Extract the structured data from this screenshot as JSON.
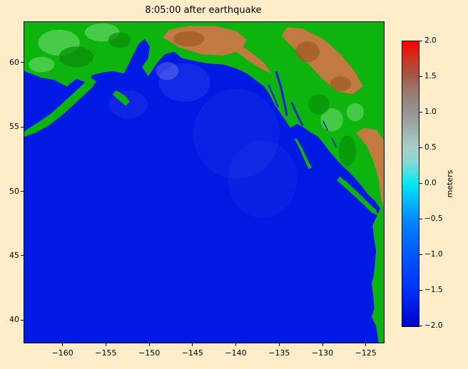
{
  "chart_data": {
    "type": "heatmap",
    "title": "8:05:00 after earthquake",
    "xlabel": "",
    "ylabel": "",
    "description": "Tsunami simulation frame over the Gulf of Alaska and northeast Pacific: uniform deep-blue ocean surface, green-to-copper shaded land (Alaska, Yukon, British Columbia, US west coast), colorbar of sea-surface elevation in meters from -2 to 2.",
    "xlim": [
      -164.5,
      -123.0
    ],
    "ylim": [
      38.3,
      63.2
    ],
    "x_ticks": [
      -160,
      -155,
      -150,
      -145,
      -140,
      -135,
      -130,
      -125
    ],
    "x_tick_labels": [
      "−160",
      "−155",
      "−150",
      "−145",
      "−140",
      "−135",
      "−130",
      "−125"
    ],
    "y_ticks": [
      40,
      45,
      50,
      55,
      60
    ],
    "y_tick_labels": [
      "40",
      "45",
      "50",
      "55",
      "60"
    ],
    "grid": false,
    "colorbar": {
      "label": "meters",
      "vmin": -2.0,
      "vmax": 2.0,
      "ticks": [
        2.0,
        1.5,
        1.0,
        0.5,
        0.0,
        -0.5,
        -1.0,
        -1.5,
        -2.0
      ],
      "tick_labels": [
        "2.0",
        "1.5",
        "1.0",
        "0.5",
        "0.0",
        "−0.5",
        "−1.0",
        "−1.5",
        "−2.0"
      ],
      "stops": [
        {
          "v": -2.0,
          "c": "#0000c8"
        },
        {
          "v": -1.5,
          "c": "#0030f6"
        },
        {
          "v": -1.0,
          "c": "#0058ff"
        },
        {
          "v": -0.5,
          "c": "#0089ff"
        },
        {
          "v": -0.2,
          "c": "#00c3ff"
        },
        {
          "v": 0.0,
          "c": "#00e9f2"
        },
        {
          "v": 0.3,
          "c": "#86d9d4"
        },
        {
          "v": 0.5,
          "c": "#a8cfca"
        },
        {
          "v": 0.8,
          "c": "#9daba6"
        },
        {
          "v": 1.0,
          "c": "#959595"
        },
        {
          "v": 1.3,
          "c": "#9b7a6e"
        },
        {
          "v": 1.5,
          "c": "#a25a49"
        },
        {
          "v": 1.75,
          "c": "#c93520"
        },
        {
          "v": 2.0,
          "c": "#ff0000"
        }
      ]
    },
    "colors": {
      "background": "#ffedc9",
      "ocean": "#0019e3",
      "land": "#0eb40e",
      "land_light": "#52d052",
      "land_dark": "#088a08",
      "highland": "#c17a3f",
      "highland_dark": "#9e5b26",
      "wave": "#ffffff"
    },
    "features": [
      {
        "name": "wave-patch-1",
        "type": "ellipse",
        "color": "wave",
        "center": [
          -148.0,
          59.4
        ],
        "rx": 1.3,
        "ry": 0.7,
        "opacity": 0.18
      },
      {
        "name": "wave-patch-2",
        "type": "ellipse",
        "color": "wave",
        "center": [
          -146.0,
          58.5
        ],
        "rx": 3.0,
        "ry": 1.5,
        "opacity": 0.07
      },
      {
        "name": "wave-patch-3",
        "type": "ellipse",
        "color": "wave",
        "center": [
          -152.5,
          56.8
        ],
        "rx": 2.2,
        "ry": 1.1,
        "opacity": 0.06
      },
      {
        "name": "wave-patch-4",
        "type": "ellipse",
        "color": "wave",
        "center": [
          -140.0,
          54.5
        ],
        "rx": 5.0,
        "ry": 3.5,
        "opacity": 0.04
      },
      {
        "name": "wave-patch-5",
        "type": "ellipse",
        "color": "wave",
        "center": [
          -137.0,
          51.0
        ],
        "rx": 4.0,
        "ry": 3.0,
        "opacity": 0.035
      },
      {
        "name": "mainland",
        "type": "polygon",
        "color": "land",
        "points": [
          [
            -164.5,
            59.4
          ],
          [
            -162.6,
            58.9
          ],
          [
            -161.0,
            58.7
          ],
          [
            -159.6,
            58.2
          ],
          [
            -158.5,
            58.8
          ],
          [
            -157.3,
            58.5
          ],
          [
            -156.6,
            59.1
          ],
          [
            -155.4,
            59.3
          ],
          [
            -154.2,
            59.4
          ],
          [
            -153.0,
            59.2
          ],
          [
            -152.2,
            60.3
          ],
          [
            -151.3,
            61.5
          ],
          [
            -150.6,
            61.9
          ],
          [
            -150.0,
            61.3
          ],
          [
            -150.2,
            60.4
          ],
          [
            -150.9,
            59.7
          ],
          [
            -150.2,
            59.0
          ],
          [
            -149.2,
            60.0
          ],
          [
            -148.3,
            60.7
          ],
          [
            -147.2,
            60.9
          ],
          [
            -146.3,
            60.4
          ],
          [
            -145.0,
            60.2
          ],
          [
            -143.5,
            60.0
          ],
          [
            -141.5,
            59.9
          ],
          [
            -140.0,
            59.6
          ],
          [
            -138.8,
            59.2
          ],
          [
            -137.6,
            58.6
          ],
          [
            -136.8,
            58.2
          ],
          [
            -136.2,
            57.6
          ],
          [
            -135.6,
            56.8
          ],
          [
            -135.0,
            56.2
          ],
          [
            -134.4,
            55.6
          ],
          [
            -133.8,
            55.0
          ],
          [
            -133.0,
            55.3
          ],
          [
            -132.2,
            55.0
          ],
          [
            -131.4,
            54.6
          ],
          [
            -130.6,
            54.3
          ],
          [
            -130.0,
            53.8
          ],
          [
            -129.2,
            53.1
          ],
          [
            -128.3,
            52.4
          ],
          [
            -127.4,
            51.8
          ],
          [
            -126.5,
            51.2
          ],
          [
            -125.6,
            50.5
          ],
          [
            -124.8,
            49.8
          ],
          [
            -124.0,
            49.3
          ],
          [
            -123.4,
            48.7
          ],
          [
            -124.3,
            47.4
          ],
          [
            -124.1,
            46.3
          ],
          [
            -123.9,
            45.5
          ],
          [
            -124.0,
            44.5
          ],
          [
            -124.2,
            43.4
          ],
          [
            -124.4,
            42.9
          ],
          [
            -124.2,
            41.9
          ],
          [
            -124.1,
            40.9
          ],
          [
            -124.4,
            40.3
          ],
          [
            -123.9,
            39.6
          ],
          [
            -123.7,
            38.8
          ],
          [
            -123.6,
            38.3
          ],
          [
            -123.0,
            38.3
          ],
          [
            -123.0,
            63.2
          ],
          [
            -164.5,
            63.2
          ]
        ]
      },
      {
        "name": "alaska-peninsula",
        "type": "polygon",
        "color": "land",
        "points": [
          [
            -156.9,
            58.9
          ],
          [
            -158.3,
            58.0
          ],
          [
            -159.9,
            57.0
          ],
          [
            -161.4,
            56.1
          ],
          [
            -162.9,
            55.4
          ],
          [
            -164.1,
            54.9
          ],
          [
            -164.5,
            54.7
          ],
          [
            -164.5,
            54.3
          ],
          [
            -163.2,
            54.6
          ],
          [
            -161.6,
            55.2
          ],
          [
            -159.9,
            56.1
          ],
          [
            -158.3,
            57.1
          ],
          [
            -156.7,
            58.1
          ],
          [
            -156.2,
            58.6
          ]
        ]
      },
      {
        "name": "kodiak-island",
        "type": "polygon",
        "color": "land",
        "points": [
          [
            -153.9,
            57.9
          ],
          [
            -152.9,
            57.5
          ],
          [
            -152.3,
            57.0
          ],
          [
            -152.8,
            56.7
          ],
          [
            -153.7,
            57.2
          ],
          [
            -154.3,
            57.6
          ]
        ]
      },
      {
        "name": "vancouver-island",
        "type": "polygon",
        "color": "land",
        "points": [
          [
            -128.4,
            50.9
          ],
          [
            -127.4,
            50.3
          ],
          [
            -126.4,
            49.7
          ],
          [
            -125.3,
            49.0
          ],
          [
            -124.4,
            48.4
          ],
          [
            -123.7,
            48.2
          ],
          [
            -123.9,
            48.6
          ],
          [
            -125.0,
            49.3
          ],
          [
            -126.2,
            50.1
          ],
          [
            -127.3,
            50.8
          ],
          [
            -128.1,
            51.2
          ]
        ]
      },
      {
        "name": "haida-gwaii",
        "type": "polygon",
        "color": "land",
        "points": [
          [
            -133.1,
            54.2
          ],
          [
            -132.4,
            53.4
          ],
          [
            -131.8,
            52.5
          ],
          [
            -131.3,
            51.9
          ],
          [
            -131.7,
            51.8
          ],
          [
            -132.3,
            52.7
          ],
          [
            -132.9,
            53.6
          ],
          [
            -133.3,
            54.1
          ]
        ]
      },
      {
        "name": "highland-alaska-range",
        "type": "polygon",
        "color": "highland",
        "points": [
          [
            -148.5,
            62.0
          ],
          [
            -146.5,
            61.2
          ],
          [
            -144.0,
            60.7
          ],
          [
            -141.5,
            60.6
          ],
          [
            -139.5,
            61.0
          ],
          [
            -138.8,
            61.8
          ],
          [
            -140.0,
            62.5
          ],
          [
            -142.5,
            62.9
          ],
          [
            -145.5,
            62.9
          ],
          [
            -147.8,
            62.6
          ]
        ]
      },
      {
        "name": "highland-st-elias",
        "type": "polygon",
        "color": "highland",
        "points": [
          [
            -140.2,
            61.0
          ],
          [
            -138.6,
            60.2
          ],
          [
            -137.2,
            59.6
          ],
          [
            -136.0,
            59.2
          ],
          [
            -136.8,
            60.0
          ],
          [
            -138.2,
            60.8
          ],
          [
            -139.6,
            61.4
          ]
        ]
      },
      {
        "name": "highland-yukon-plateau",
        "type": "polygon",
        "color": "highland",
        "points": [
          [
            -134.8,
            62.1
          ],
          [
            -133.0,
            60.9
          ],
          [
            -131.2,
            59.6
          ],
          [
            -129.8,
            58.6
          ],
          [
            -128.2,
            57.8
          ],
          [
            -126.6,
            57.6
          ],
          [
            -125.4,
            58.2
          ],
          [
            -126.4,
            59.4
          ],
          [
            -128.0,
            60.7
          ],
          [
            -130.0,
            61.9
          ],
          [
            -132.4,
            62.7
          ],
          [
            -134.2,
            62.8
          ]
        ]
      },
      {
        "name": "highland-bc-interior",
        "type": "polygon",
        "color": "highland",
        "points": [
          [
            -126.2,
            54.6
          ],
          [
            -125.0,
            53.6
          ],
          [
            -124.2,
            52.4
          ],
          [
            -123.6,
            51.0
          ],
          [
            -123.3,
            49.4
          ],
          [
            -123.0,
            48.8
          ],
          [
            -123.0,
            54.0
          ],
          [
            -123.8,
            54.8
          ],
          [
            -125.2,
            55.0
          ]
        ]
      },
      {
        "name": "lowland-texture-1",
        "type": "ellipse",
        "color": "land_light",
        "center": [
          -160.5,
          61.6
        ],
        "rx": 2.4,
        "ry": 1.0,
        "opacity": 0.85
      },
      {
        "name": "lowland-texture-2",
        "type": "ellipse",
        "color": "land_light",
        "center": [
          -155.5,
          62.4
        ],
        "rx": 2.0,
        "ry": 0.7,
        "opacity": 0.85
      },
      {
        "name": "lowland-texture-3",
        "type": "ellipse",
        "color": "land_light",
        "center": [
          -162.5,
          59.9
        ],
        "rx": 1.5,
        "ry": 0.6,
        "opacity": 0.85
      },
      {
        "name": "lowland-texture-4",
        "type": "ellipse",
        "color": "land_light",
        "center": [
          -129.0,
          55.6
        ],
        "rx": 1.3,
        "ry": 0.9,
        "opacity": 0.8
      },
      {
        "name": "lowland-texture-5",
        "type": "ellipse",
        "color": "land_light",
        "center": [
          -126.3,
          56.2
        ],
        "rx": 1.0,
        "ry": 0.7,
        "opacity": 0.8
      },
      {
        "name": "forest-texture-1",
        "type": "ellipse",
        "color": "land_dark",
        "center": [
          -158.5,
          60.5
        ],
        "rx": 2.0,
        "ry": 0.8,
        "opacity": 0.7
      },
      {
        "name": "forest-texture-2",
        "type": "ellipse",
        "color": "land_dark",
        "center": [
          -153.5,
          61.8
        ],
        "rx": 1.3,
        "ry": 0.6,
        "opacity": 0.7
      },
      {
        "name": "forest-texture-3",
        "type": "ellipse",
        "color": "land_dark",
        "center": [
          -130.5,
          56.8
        ],
        "rx": 1.2,
        "ry": 0.8,
        "opacity": 0.6
      },
      {
        "name": "forest-texture-4",
        "type": "ellipse",
        "color": "land_dark",
        "center": [
          -127.2,
          53.2
        ],
        "rx": 1.0,
        "ry": 1.2,
        "opacity": 0.6
      },
      {
        "name": "ridge-texture-1",
        "type": "ellipse",
        "color": "highland_dark",
        "center": [
          -145.5,
          61.9
        ],
        "rx": 1.8,
        "ry": 0.6,
        "opacity": 0.7
      },
      {
        "name": "ridge-texture-2",
        "type": "ellipse",
        "color": "highland_dark",
        "center": [
          -131.8,
          60.9
        ],
        "rx": 1.4,
        "ry": 0.8,
        "opacity": 0.7
      },
      {
        "name": "ridge-texture-3",
        "type": "ellipse",
        "color": "highland_dark",
        "center": [
          -128.0,
          58.4
        ],
        "rx": 1.2,
        "ry": 0.6,
        "opacity": 0.7
      },
      {
        "name": "channel-lynn-canal",
        "type": "channel",
        "width": 3,
        "points": [
          [
            -135.4,
            59.3
          ],
          [
            -134.9,
            58.2
          ],
          [
            -134.5,
            57.0
          ],
          [
            -134.2,
            56.0
          ]
        ]
      },
      {
        "name": "channel-clarence-strait",
        "type": "channel",
        "width": 2.5,
        "points": [
          [
            -133.6,
            56.9
          ],
          [
            -133.0,
            56.0
          ],
          [
            -132.4,
            55.2
          ]
        ]
      },
      {
        "name": "channel-chatham-strait",
        "type": "channel",
        "width": 2,
        "points": [
          [
            -136.3,
            58.3
          ],
          [
            -135.7,
            57.4
          ],
          [
            -135.2,
            56.6
          ]
        ]
      },
      {
        "name": "channel-portland-canal",
        "type": "channel",
        "width": 1.5,
        "points": [
          [
            -130.0,
            55.5
          ],
          [
            -129.5,
            54.8
          ]
        ]
      },
      {
        "name": "channel-douglas",
        "type": "channel",
        "width": 1.5,
        "points": [
          [
            -129.0,
            54.2
          ],
          [
            -128.5,
            53.5
          ]
        ]
      }
    ]
  }
}
